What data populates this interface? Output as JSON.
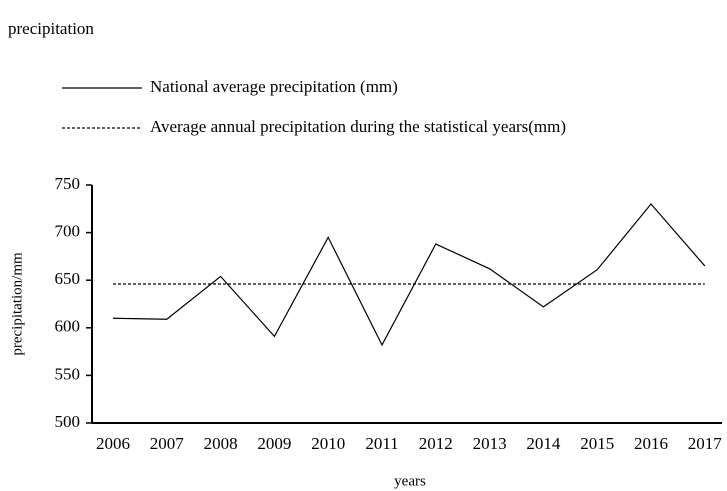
{
  "chart_data": {
    "type": "line",
    "title": "precipitation",
    "x_label": "years",
    "y_label": "precipitation/mm",
    "categories": [
      "2006",
      "2007",
      "2008",
      "2009",
      "2010",
      "2011",
      "2012",
      "2013",
      "2014",
      "2015",
      "2016",
      "2017"
    ],
    "series": [
      {
        "name": "National average precipitation (mm)",
        "color": "#000000",
        "style": "solid",
        "values": [
          610,
          609,
          654,
          591,
          695,
          582,
          688,
          662,
          622,
          661,
          730,
          665
        ]
      },
      {
        "name": "Average annual precipitation during the statistical years(mm)",
        "color": "#000000",
        "style": "dotted",
        "values": [
          646,
          646,
          646,
          646,
          646,
          646,
          646,
          646,
          646,
          646,
          646,
          646
        ]
      }
    ],
    "ylim": [
      500,
      750
    ],
    "yticks": [
      500,
      550,
      600,
      650,
      700,
      750
    ],
    "grid": false
  }
}
